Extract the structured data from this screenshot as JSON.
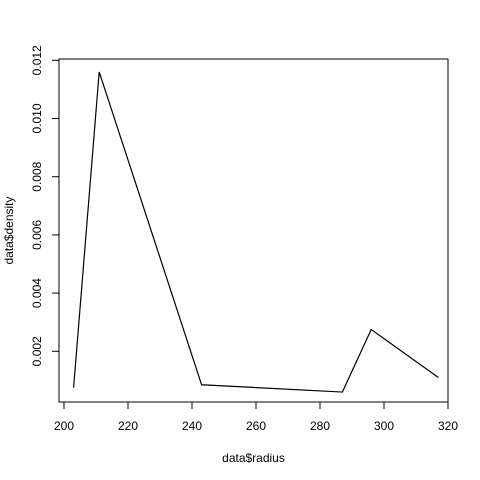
{
  "chart_data": {
    "type": "line",
    "title": "",
    "xlabel": "data$radius",
    "ylabel": "data$density",
    "x": [
      203,
      211,
      243,
      287,
      296,
      317
    ],
    "y": [
      0.00075,
      0.0116,
      0.00085,
      0.0006,
      0.00275,
      0.0011
    ],
    "xlim": [
      200,
      320
    ],
    "ylim": [
      0.0,
      0.012
    ],
    "x_ticks": [
      200,
      220,
      240,
      260,
      280,
      300,
      320
    ],
    "x_tick_labels": [
      "200",
      "220",
      "240",
      "260",
      "280",
      "300",
      "320"
    ],
    "y_ticks": [
      0.002,
      0.004,
      0.006,
      0.008,
      0.01,
      0.012
    ],
    "y_tick_labels": [
      "0.002",
      "0.004",
      "0.006",
      "0.008",
      "0.010",
      "0.012"
    ],
    "grid": false,
    "line_color": "#000000"
  }
}
